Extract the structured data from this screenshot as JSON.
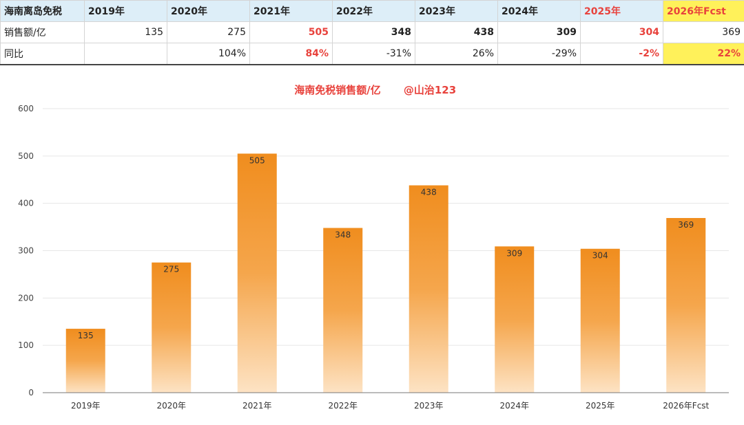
{
  "table": {
    "header": [
      "海南离岛免税",
      "2019年",
      "2020年",
      "2021年",
      "2022年",
      "2023年",
      "2024年",
      "2025年",
      "2026年Fcst"
    ],
    "sales_row": [
      "销售额/亿",
      "135",
      "275",
      "505",
      "348",
      "438",
      "309",
      "304",
      "369"
    ],
    "yoy_row": [
      "同比",
      "",
      "104%",
      "84%",
      "-31%",
      "26%",
      "-29%",
      "-2%",
      "22%"
    ]
  },
  "colors": {
    "accent_red": "#e8423c",
    "header_bg": "#ddeef8",
    "forecast_highlight": "#fff15a",
    "bar_top": "#f08d1e",
    "bar_bottom": "#fde0bd"
  },
  "chart_data": {
    "type": "bar",
    "title": "海南免税销售额/亿",
    "subtitle": "@山治123",
    "categories": [
      "2019年",
      "2020年",
      "2021年",
      "2022年",
      "2023年",
      "2024年",
      "2025年",
      "2026年Fcst"
    ],
    "values": [
      135,
      275,
      505,
      348,
      438,
      309,
      304,
      369
    ],
    "data_labels": [
      "135",
      "275",
      "505",
      "348",
      "438",
      "309",
      "304",
      "369"
    ],
    "ylim": [
      0,
      600
    ],
    "yticks": [
      "0",
      "100",
      "200",
      "300",
      "400",
      "500",
      "600"
    ],
    "xlabel": "",
    "ylabel": "",
    "grid": true,
    "legend": "none"
  }
}
